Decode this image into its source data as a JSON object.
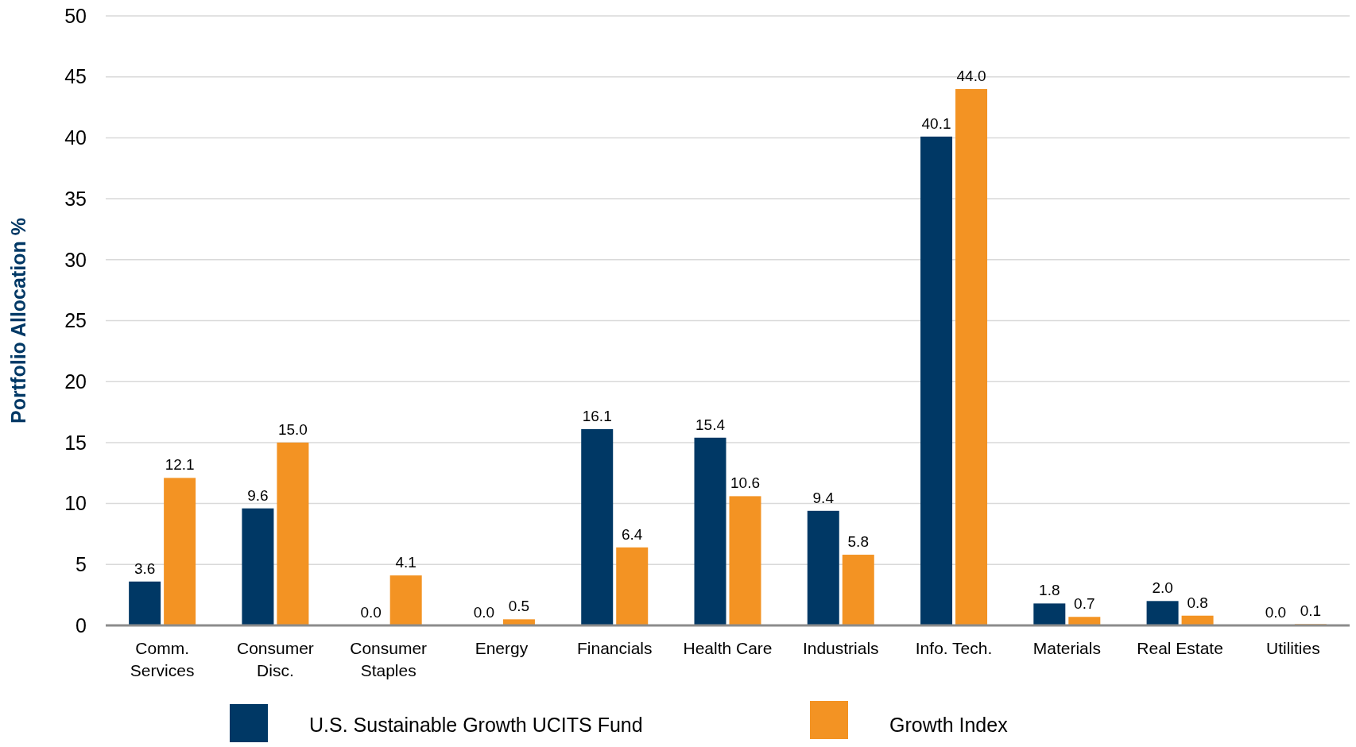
{
  "chart_data": {
    "type": "bar",
    "ylabel": "Portfolio Allocation %",
    "categories": [
      "Comm.\nServices",
      "Consumer\nDisc.",
      "Consumer\nStaples",
      "Energy",
      "Financials",
      "Health Care",
      "Industrials",
      "Info. Tech.",
      "Materials",
      "Real Estate",
      "Utilities"
    ],
    "series": [
      {
        "name": "U.S. Sustainable Growth UCITS Fund",
        "color": "#003865",
        "values": [
          3.6,
          9.6,
          0.0,
          0.0,
          16.1,
          15.4,
          9.4,
          40.1,
          1.8,
          2.0,
          0.0
        ],
        "value_labels": [
          "3.6",
          "9.6",
          "0.0",
          "0.0",
          "16.1",
          "15.4",
          "9.4",
          "40.1",
          "1.8",
          "2.0",
          "0.0"
        ]
      },
      {
        "name": "Growth Index",
        "color": "#f39323",
        "values": [
          12.1,
          15.0,
          4.1,
          0.5,
          6.4,
          10.6,
          5.8,
          44.0,
          0.7,
          0.8,
          0.1
        ],
        "value_labels": [
          "12.1",
          "15.0",
          "4.1",
          "0.5",
          "6.4",
          "10.6",
          "5.8",
          "44.0",
          "0.7",
          "0.8",
          "0.1"
        ]
      }
    ],
    "ylim": [
      0,
      50
    ],
    "yticks": [
      0,
      5,
      10,
      15,
      20,
      25,
      30,
      35,
      40,
      45,
      50
    ],
    "grid": "y",
    "legend": "bottom"
  }
}
